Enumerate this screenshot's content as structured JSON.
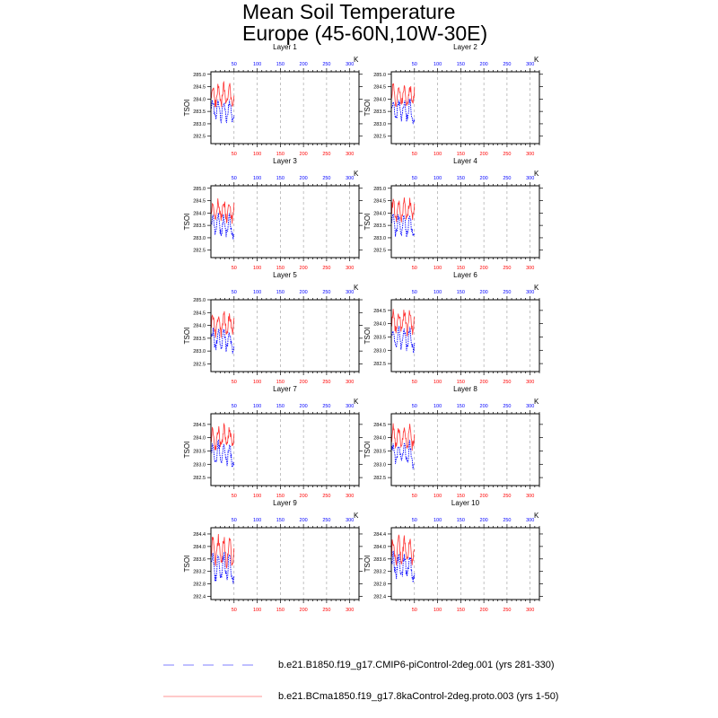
{
  "figure": {
    "title_line1": "Mean Soil Temperature",
    "title_line2": "Europe (45-60N,10W-30E)"
  },
  "chart_data": {
    "type": "line",
    "panel_type": "multi-panel line",
    "ylabel": "TSOI",
    "top_axis_unit": "K",
    "x_range": [
      0,
      320
    ],
    "bottom_ticks": [
      50,
      100,
      150,
      200,
      250,
      300
    ],
    "top_ticks": [
      50,
      100,
      150,
      200,
      250,
      300
    ],
    "bottom_tick_color": "#ff0000",
    "top_tick_color": "#0000ff",
    "series": [
      {
        "name": "b.e21.B1850.f19_g17.CMIP6-piControl-2deg.001 (yrs 281-330)",
        "color": "#0000ff",
        "legend_color": "#9999ff",
        "style": "dashed"
      },
      {
        "name": "b.e21.BCma1850.f19_g17.8kaControl-2deg.proto.003 (yrs 1-50)",
        "color": "#ff0000",
        "legend_color": "#ffaaaa",
        "style": "solid"
      }
    ],
    "panels": [
      {
        "label": "Layer 1",
        "ylim": [
          282.2,
          285.1
        ],
        "yticks": [
          "282.5",
          "283.0",
          "283.5",
          "284.0",
          "284.5",
          "285.0"
        ],
        "blue_base": 283.55,
        "red_base": 284.15
      },
      {
        "label": "Layer 2",
        "ylim": [
          282.2,
          285.1
        ],
        "yticks": [
          "282.5",
          "283.0",
          "283.5",
          "284.0",
          "284.5",
          "285.0"
        ],
        "blue_base": 283.55,
        "red_base": 284.15
      },
      {
        "label": "Layer 3",
        "ylim": [
          282.2,
          285.1
        ],
        "yticks": [
          "282.5",
          "283.0",
          "283.5",
          "284.0",
          "284.5",
          "285.0"
        ],
        "blue_base": 283.5,
        "red_base": 284.1
      },
      {
        "label": "Layer 4",
        "ylim": [
          282.2,
          285.1
        ],
        "yticks": [
          "282.5",
          "283.0",
          "283.5",
          "284.0",
          "284.5",
          "285.0"
        ],
        "blue_base": 283.5,
        "red_base": 284.1
      },
      {
        "label": "Layer 5",
        "ylim": [
          282.2,
          285.0
        ],
        "yticks": [
          "282.5",
          "283.0",
          "283.5",
          "284.0",
          "284.5",
          "285.0"
        ],
        "blue_base": 283.45,
        "red_base": 284.05
      },
      {
        "label": "Layer 6",
        "ylim": [
          282.2,
          284.9
        ],
        "yticks": [
          "282.5",
          "283.0",
          "283.5",
          "284.0",
          "284.5"
        ],
        "blue_base": 283.45,
        "red_base": 284.05
      },
      {
        "label": "Layer 7",
        "ylim": [
          282.2,
          284.9
        ],
        "yticks": [
          "282.5",
          "283.0",
          "283.5",
          "284.0",
          "284.5"
        ],
        "blue_base": 283.4,
        "red_base": 284.0
      },
      {
        "label": "Layer 8",
        "ylim": [
          282.2,
          284.9
        ],
        "yticks": [
          "282.5",
          "283.0",
          "283.5",
          "284.0",
          "284.5"
        ],
        "blue_base": 283.4,
        "red_base": 284.0
      },
      {
        "label": "Layer 9",
        "ylim": [
          282.3,
          284.6
        ],
        "yticks": [
          "282.4",
          "282.8",
          "283.2",
          "283.6",
          "284.0",
          "284.4"
        ],
        "blue_base": 283.35,
        "red_base": 283.85
      },
      {
        "label": "Layer 10",
        "ylim": [
          282.3,
          284.6
        ],
        "yticks": [
          "282.4",
          "282.8",
          "283.2",
          "283.6",
          "284.0",
          "284.4"
        ],
        "blue_base": 283.35,
        "red_base": 283.85
      }
    ]
  }
}
